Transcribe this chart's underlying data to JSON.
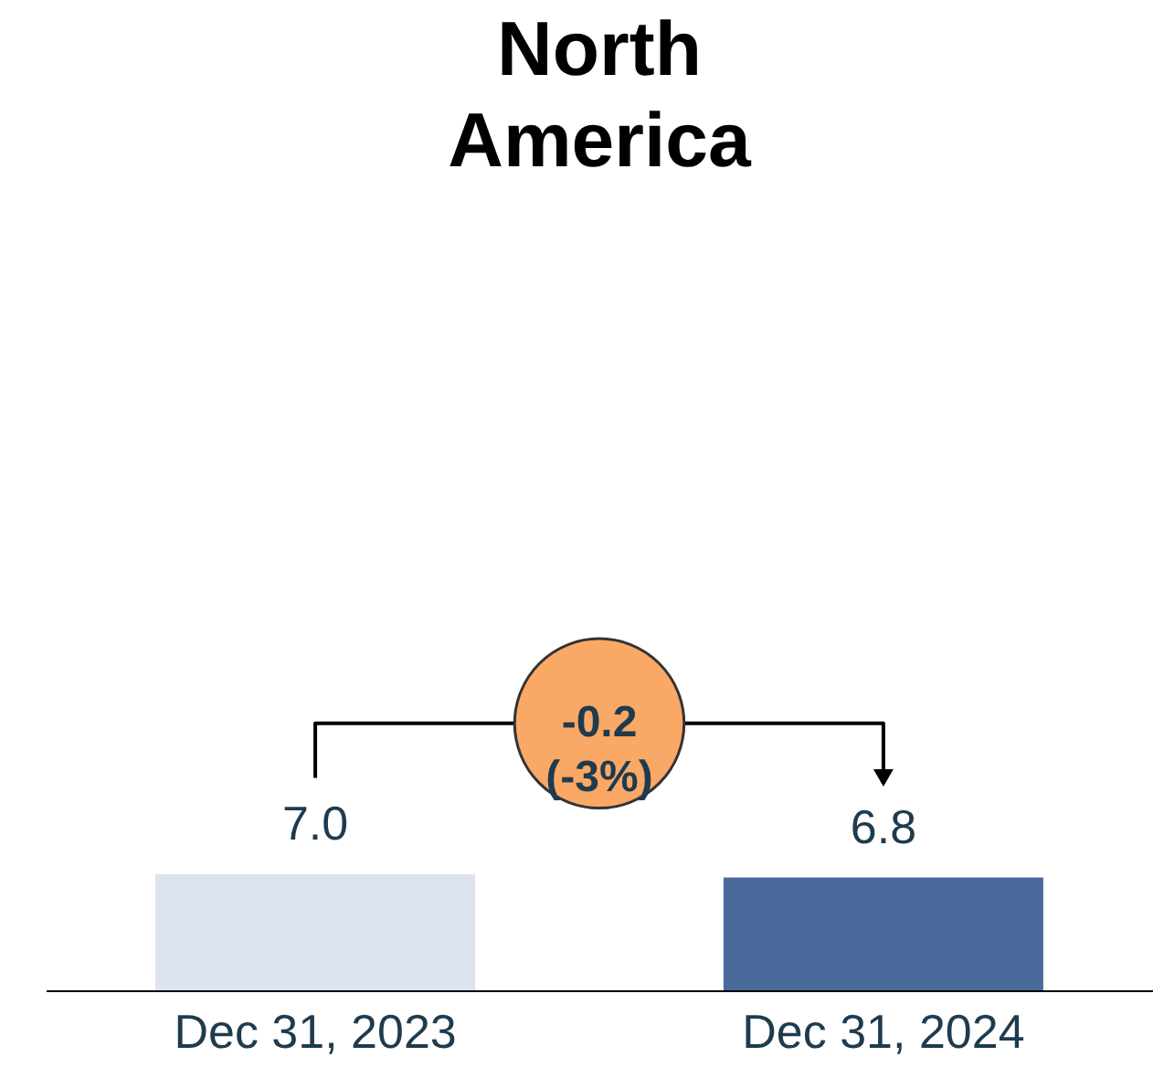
{
  "chart_data": {
    "type": "bar",
    "title": "North America",
    "categories": [
      "Dec 31, 2023",
      "Dec 31, 2024"
    ],
    "values": [
      7.0,
      6.8
    ],
    "colors": [
      "#dde3ee",
      "#4a6a9c"
    ],
    "tick_labels": "x",
    "value_labels": [
      "7.0",
      "6.8"
    ],
    "grid": false,
    "annotations": [
      "-0.2 (-3%)"
    ]
  }
}
